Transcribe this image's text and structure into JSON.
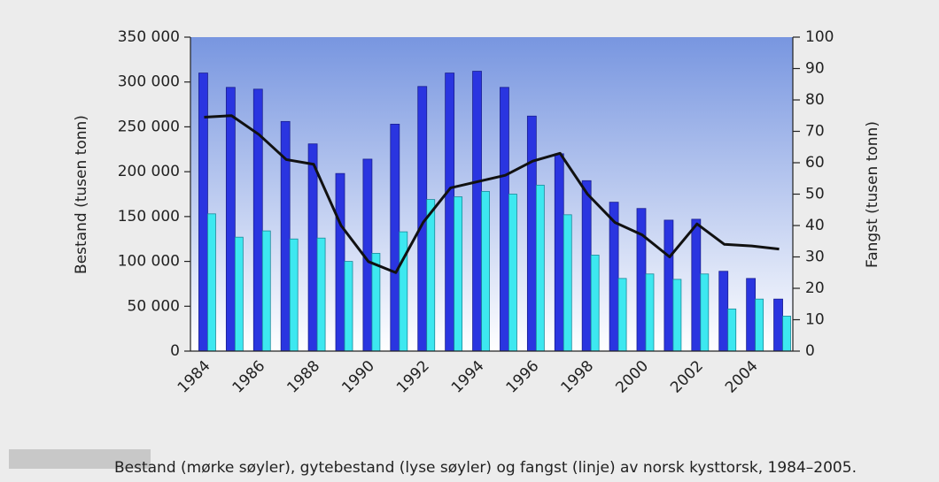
{
  "chart_data": {
    "type": "bar",
    "ylabel": "Bestand (tusen tonn)",
    "y2label": "Fangst (tusen tonn)",
    "caption": "Bestand (mørke søyler), gytebestand (lyse søyler) og fangst (linje) av norsk kysttorsk, 1984–2005.",
    "categories": [
      "1984",
      null,
      "1986",
      null,
      "1988",
      null,
      "1990",
      null,
      "1992",
      null,
      "1994",
      null,
      "1996",
      null,
      "1998",
      null,
      "2000",
      null,
      "2002",
      null,
      "2004",
      null
    ],
    "series": [
      {
        "color": "#2a35e0",
        "values": [
          310000,
          294000,
          292000,
          256000,
          231000,
          198000,
          214000,
          253000,
          295000,
          310000,
          312000,
          294000,
          262000,
          220000,
          190000,
          166000,
          159000,
          146000,
          147000,
          89000,
          81000,
          58000
        ]
      },
      {
        "color": "#3de8f0",
        "values": [
          153000,
          127000,
          134000,
          125000,
          126000,
          100000,
          109000,
          133000,
          169000,
          172000,
          178000,
          175000,
          185000,
          152000,
          107000,
          81000,
          86000,
          80000,
          86000,
          47000,
          58000,
          39000
        ]
      },
      {
        "type": "line",
        "axis": "y2",
        "color": "#111111",
        "values": [
          74.5,
          75,
          69,
          61,
          59.5,
          40,
          28.5,
          25,
          41,
          52,
          54,
          56,
          60.5,
          63,
          50,
          41,
          37,
          30,
          40.5,
          34,
          33.5,
          32.5
        ]
      }
    ],
    "ylim": [
      0,
      350000
    ],
    "yticks": [
      0,
      {
        "value": 50000,
        "label": "50 000"
      },
      {
        "value": 100000,
        "label": "100 000"
      },
      {
        "value": 150000,
        "label": "150 000"
      },
      {
        "value": 200000,
        "label": "200 000"
      },
      {
        "value": 250000,
        "label": "250 000"
      },
      {
        "value": 300000,
        "label": "300 000"
      },
      {
        "value": 350000,
        "label": "350 000"
      }
    ],
    "y2lim": [
      0,
      100
    ],
    "y2ticks": [
      0,
      10,
      20,
      30,
      40,
      50,
      60,
      70,
      80,
      90,
      100
    ]
  }
}
